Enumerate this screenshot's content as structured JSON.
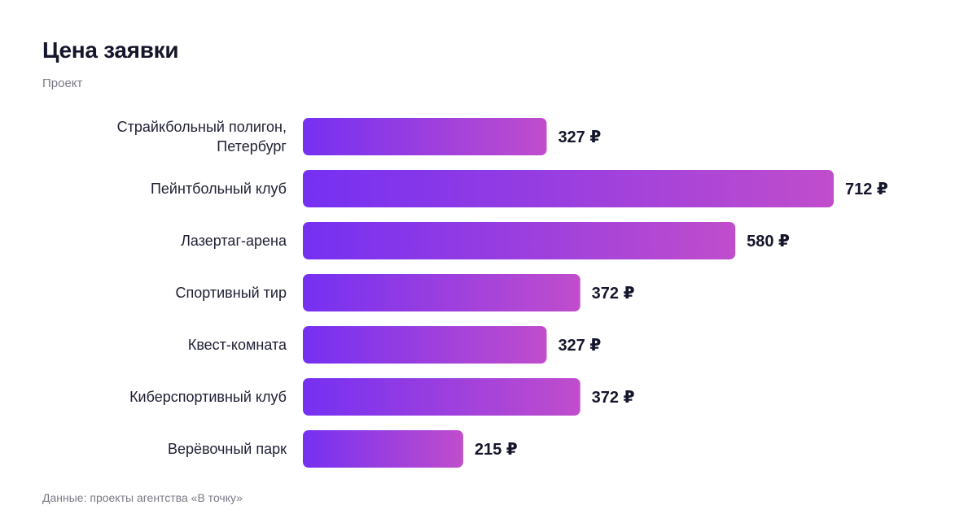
{
  "chart_data": {
    "type": "bar",
    "orientation": "horizontal",
    "title": "Цена заявки",
    "subtitle": "Проект",
    "categories": [
      [
        "Страйкбольный полигон,",
        "Петербург"
      ],
      [
        "Пейнтбольный клуб"
      ],
      [
        "Лазертаг-арена"
      ],
      [
        "Спортивный тир"
      ],
      [
        "Квест-комната"
      ],
      [
        "Киберспортивный клуб"
      ],
      [
        "Верёвочный парк"
      ]
    ],
    "values": [
      327,
      712,
      580,
      372,
      327,
      372,
      215
    ],
    "value_suffix": " ₽",
    "xlim": [
      0,
      712
    ],
    "grid": false,
    "legend": "none",
    "colors": {
      "gradient_start": "#7530f2",
      "gradient_end": "#c04dcc"
    },
    "source": "Данные: проекты агентства «В точку»"
  }
}
